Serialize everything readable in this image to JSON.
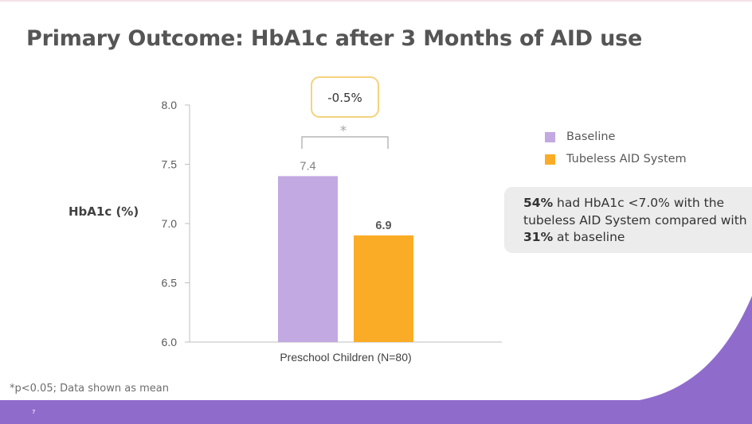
{
  "slide": {
    "title": "Primary Outcome: HbA1c after 3 Months of AID use",
    "footnote": "*p<0.05; Data shown as mean",
    "page_number": "7",
    "colors": {
      "baseline": "#c3a9e2",
      "aid": "#fbac27",
      "accent_purple": "#8f6ccc",
      "callout_bg": "#ececec",
      "difference_box_border": "#f4d37d"
    }
  },
  "chart_data": {
    "type": "bar",
    "title": "",
    "xlabel": "",
    "ylabel": "HbA1c (%)",
    "categories": [
      "Preschool Children (N=80)"
    ],
    "ylim": [
      6.0,
      8.0
    ],
    "yticks": [
      "6.0",
      "6.5",
      "7.0",
      "7.5",
      "8.0"
    ],
    "series": [
      {
        "name": "Baseline",
        "values": [
          7.4
        ],
        "label": "7.4",
        "color": "#c3a9e2"
      },
      {
        "name": "Tubeless AID System",
        "values": [
          6.9
        ],
        "label": "6.9",
        "color": "#fbac27"
      }
    ],
    "annotations": {
      "difference": "-0.5%",
      "significance": "*"
    },
    "legend": [
      "Baseline",
      "Tubeless AID System"
    ]
  },
  "callout": {
    "pct_aid": "54%",
    "text_1": " had HbA1c <7.0% with the tubeless AID System compared with ",
    "pct_baseline": "31%",
    "text_2": " at baseline"
  }
}
